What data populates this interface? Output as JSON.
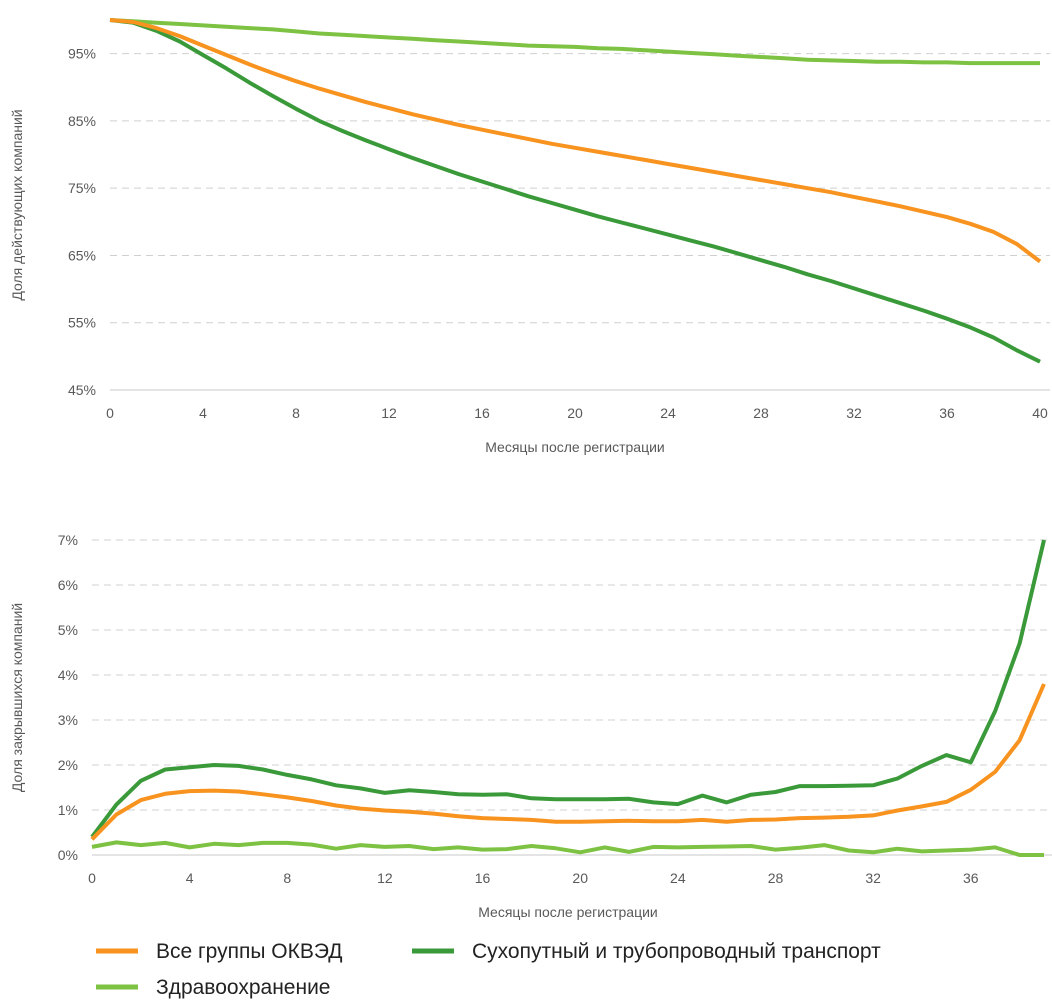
{
  "colors": {
    "all": "#F7931E",
    "transport": "#3A9A3A",
    "health": "#7DC242",
    "grid": "#D0D0D0",
    "text": "#595959"
  },
  "legend": {
    "items": [
      {
        "label": "Все группы ОКВЭД",
        "color": "#F7931E"
      },
      {
        "label": "Сухопутный и трубопроводный транспорт",
        "color": "#3A9A3A"
      },
      {
        "label": "Здравоохранение",
        "color": "#7DC242"
      }
    ]
  },
  "chart_data": [
    {
      "type": "line",
      "xlabel": "Месяцы после регистрации",
      "ylabel": "Доля действующих компаний",
      "xlim": [
        0,
        40
      ],
      "ylim": [
        45,
        100
      ],
      "x_ticks": [
        0,
        4,
        8,
        12,
        16,
        20,
        24,
        28,
        32,
        36,
        40
      ],
      "y_ticks": [
        45,
        55,
        65,
        75,
        85,
        95
      ],
      "y_tick_labels": [
        "45%",
        "55%",
        "65%",
        "75%",
        "85%",
        "95%"
      ],
      "grid": true,
      "legend_position": "bottom",
      "series": [
        {
          "name": "Все группы ОКВЭД",
          "color": "#F7931E",
          "values": [
            100,
            99.7,
            98.8,
            97.6,
            96.2,
            94.8,
            93.4,
            92.1,
            90.9,
            89.8,
            88.8,
            87.8,
            86.9,
            86.0,
            85.2,
            84.4,
            83.7,
            83.0,
            82.3,
            81.6,
            81.0,
            80.4,
            79.8,
            79.2,
            78.6,
            78.0,
            77.4,
            76.8,
            76.2,
            75.6,
            75.0,
            74.4,
            73.7,
            73.0,
            72.3,
            71.5,
            70.7,
            69.7,
            68.5,
            66.7,
            64.1
          ]
        },
        {
          "name": "Сухопутный и трубопроводный транспорт",
          "color": "#3A9A3A",
          "values": [
            100,
            99.6,
            98.4,
            96.8,
            94.8,
            92.8,
            90.7,
            88.7,
            86.8,
            85.0,
            83.5,
            82.1,
            80.8,
            79.5,
            78.3,
            77.1,
            76.0,
            74.9,
            73.8,
            72.8,
            71.8,
            70.8,
            69.9,
            69.0,
            68.1,
            67.2,
            66.3,
            65.3,
            64.3,
            63.3,
            62.2,
            61.2,
            60.1,
            59.0,
            57.9,
            56.8,
            55.6,
            54.3,
            52.8,
            50.9,
            49.2
          ]
        },
        {
          "name": "Здравоохранение",
          "color": "#7DC242",
          "values": [
            100,
            99.8,
            99.6,
            99.4,
            99.2,
            99.0,
            98.8,
            98.6,
            98.3,
            98.0,
            97.8,
            97.6,
            97.4,
            97.2,
            97.0,
            96.8,
            96.6,
            96.4,
            96.2,
            96.1,
            96.0,
            95.8,
            95.7,
            95.5,
            95.3,
            95.1,
            94.9,
            94.7,
            94.5,
            94.3,
            94.1,
            94.0,
            93.9,
            93.8,
            93.8,
            93.7,
            93.7,
            93.6,
            93.6,
            93.6,
            93.6
          ]
        }
      ]
    },
    {
      "type": "line",
      "xlabel": "Месяцы после регистрации",
      "ylabel": "Доля закрывшихся компаний",
      "xlim": [
        0,
        39
      ],
      "ylim": [
        0,
        7
      ],
      "x_ticks": [
        0,
        4,
        8,
        12,
        16,
        20,
        24,
        28,
        32,
        36
      ],
      "y_ticks": [
        0,
        1,
        2,
        3,
        4,
        5,
        6,
        7
      ],
      "y_tick_labels": [
        "0%",
        "1%",
        "2%",
        "3%",
        "4%",
        "5%",
        "6%",
        "7%"
      ],
      "grid": true,
      "legend_position": "bottom",
      "series": [
        {
          "name": "Все группы ОКВЭД",
          "color": "#F7931E",
          "values": [
            0.35,
            0.9,
            1.22,
            1.36,
            1.42,
            1.43,
            1.41,
            1.35,
            1.28,
            1.2,
            1.1,
            1.03,
            0.99,
            0.96,
            0.92,
            0.86,
            0.82,
            0.8,
            0.78,
            0.74,
            0.74,
            0.75,
            0.76,
            0.75,
            0.75,
            0.78,
            0.74,
            0.78,
            0.79,
            0.82,
            0.83,
            0.85,
            0.88,
            0.99,
            1.08,
            1.18,
            1.45,
            1.85,
            2.55,
            3.8
          ]
        },
        {
          "name": "Сухопутный и трубопроводный транспорт",
          "color": "#3A9A3A",
          "values": [
            0.4,
            1.12,
            1.65,
            1.9,
            1.95,
            2.0,
            1.98,
            1.9,
            1.78,
            1.68,
            1.55,
            1.48,
            1.38,
            1.44,
            1.4,
            1.35,
            1.34,
            1.35,
            1.26,
            1.24,
            1.24,
            1.24,
            1.25,
            1.17,
            1.13,
            1.32,
            1.17,
            1.34,
            1.4,
            1.53,
            1.53,
            1.54,
            1.55,
            1.7,
            1.98,
            2.22,
            2.06,
            3.2,
            4.7,
            7.0
          ]
        },
        {
          "name": "Здравоохранение",
          "color": "#7DC242",
          "values": [
            0.18,
            0.28,
            0.22,
            0.27,
            0.17,
            0.25,
            0.22,
            0.27,
            0.27,
            0.23,
            0.14,
            0.22,
            0.18,
            0.2,
            0.13,
            0.17,
            0.12,
            0.13,
            0.2,
            0.15,
            0.06,
            0.17,
            0.07,
            0.18,
            0.17,
            0.18,
            0.19,
            0.2,
            0.12,
            0.16,
            0.22,
            0.1,
            0.06,
            0.14,
            0.08,
            0.1,
            0.12,
            0.17,
            0.0,
            0.0
          ]
        }
      ]
    }
  ]
}
